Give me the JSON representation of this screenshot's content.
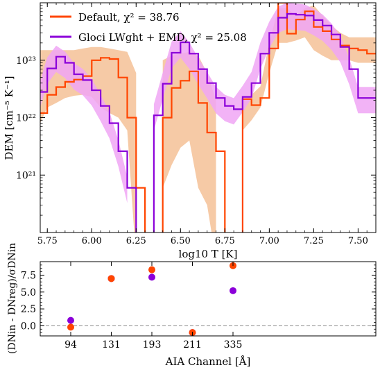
{
  "chart_data": [
    {
      "type": "line",
      "subtype": "step",
      "xlabel": "log10 T [K]",
      "ylabel": "DEM [cm⁻⁵ K⁻¹]",
      "xlim": [
        5.71,
        7.6
      ],
      "ylim": [
        1e+20,
        1e+24
      ],
      "y_scale": "log",
      "x_ticks": [
        5.75,
        6.0,
        6.25,
        6.5,
        6.75,
        7.0,
        7.25,
        7.5
      ],
      "x_tick_labels": [
        "5.75",
        "6.00",
        "6.25",
        "6.50",
        "6.75",
        "7.00",
        "7.25",
        "7.50"
      ],
      "y_ticks": [
        1e+21,
        1e+22,
        1e+23
      ],
      "y_tick_labels": [
        "10²¹",
        "10²²",
        "10²³"
      ],
      "legend": "top-left",
      "series": [
        {
          "name": "Default, χ² = 38.76",
          "color": "#ff4500",
          "band_color": "#f5c196",
          "x": [
            5.71,
            5.75,
            5.8,
            5.85,
            5.9,
            5.95,
            6.0,
            6.05,
            6.1,
            6.15,
            6.2,
            6.25,
            6.3,
            6.35,
            6.4,
            6.45,
            6.5,
            6.55,
            6.6,
            6.65,
            6.7,
            6.75,
            6.8,
            6.85,
            6.9,
            6.95,
            7.0,
            7.05,
            7.1,
            7.15,
            7.2,
            7.25,
            7.3,
            7.35,
            7.4,
            7.45,
            7.5,
            7.55,
            7.6
          ],
          "values": [
            1.2e+22,
            2.5e+22,
            3.4e+22,
            4.2e+22,
            4.6e+22,
            5.3e+22,
            1e+23,
            1.1e+23,
            1.05e+23,
            5e+22,
            1e+22,
            6e+20,
            null,
            null,
            1e+22,
            3.3e+22,
            4.4e+22,
            6.4e+22,
            1.8e+22,
            5.5e+21,
            2.6e+21,
            null,
            null,
            2.1e+22,
            1.65e+22,
            2.2e+22,
            1.6e+23,
            1e+24,
            2.9e+23,
            5.1e+23,
            7.1e+23,
            3.8e+23,
            3.2e+23,
            2.3e+23,
            1.8e+23,
            1.6e+23,
            1.5e+23,
            1.3e+23,
            1.2e+23
          ],
          "band_low": [
            8e+21,
            1.5e+22,
            1.8e+22,
            2.2e+22,
            2.4e+22,
            2.5e+22,
            2.3e+22,
            1.5e+22,
            1.2e+22,
            1e+22,
            6e+21,
            null,
            null,
            null,
            6e+20,
            1.5e+21,
            3e+21,
            4e+21,
            6e+20,
            3e+20,
            null,
            null,
            null,
            6e+21,
            9e+21,
            1.5e+22,
            6e+22,
            2e+23,
            2e+23,
            2.2e+23,
            2.5e+23,
            1.5e+23,
            1.2e+23,
            1e+23,
            1e+23,
            1e+23,
            9e+22,
            9e+22,
            9e+22
          ],
          "band_high": [
            1.5e+23,
            1.5e+23,
            1.5e+23,
            1.5e+23,
            1.5e+23,
            1.6e+23,
            1.7e+23,
            1.7e+23,
            1.6e+23,
            1.5e+23,
            1.4e+23,
            6e+22,
            null,
            null,
            1e+23,
            1.2e+23,
            1.3e+23,
            1.4e+23,
            1.2e+23,
            6e+22,
            2e+22,
            null,
            null,
            2e+22,
            2.5e+22,
            3.5e+22,
            2e+23,
            8e+23,
            8e+23,
            6e+23,
            8e+23,
            9e+23,
            6e+23,
            4e+23,
            3e+23,
            2.5e+23,
            2.5e+23,
            2.5e+23,
            2.5e+23
          ]
        },
        {
          "name": "Gloci LWght + EMD, χ² = 25.08",
          "color": "#8b00d9",
          "band_color": "#f0a6f5",
          "x": [
            5.71,
            5.75,
            5.8,
            5.85,
            5.9,
            5.95,
            6.0,
            6.05,
            6.1,
            6.15,
            6.2,
            6.25,
            6.3,
            6.35,
            6.4,
            6.45,
            6.5,
            6.55,
            6.6,
            6.65,
            6.7,
            6.75,
            6.8,
            6.85,
            6.9,
            6.95,
            7.0,
            7.05,
            7.1,
            7.15,
            7.2,
            7.25,
            7.3,
            7.35,
            7.4,
            7.45,
            7.5,
            7.55,
            7.6
          ],
          "values": [
            2.8e+22,
            7.2e+22,
            1.15e+23,
            9e+22,
            5.7e+22,
            4.5e+22,
            3e+22,
            1.6e+22,
            8e+21,
            2.6e+21,
            6e+20,
            null,
            null,
            1.1e+22,
            3.9e+22,
            1.35e+23,
            2.05e+23,
            1.3e+23,
            7e+22,
            4e+22,
            2.2e+22,
            1.6e+22,
            1.4e+22,
            2.3e+22,
            4e+22,
            1.3e+23,
            3e+23,
            5.5e+23,
            6.4e+23,
            6.2e+23,
            6e+23,
            5e+23,
            4e+23,
            2.8e+23,
            1.7e+23,
            7e+22,
            2.2e+22,
            2.2e+22,
            2.2e+22
          ],
          "band_low": [
            null,
            null,
            null,
            null,
            null,
            null,
            null,
            null,
            null,
            null,
            null,
            null,
            null,
            null,
            null,
            null,
            null,
            null,
            null,
            null,
            null,
            null,
            null,
            null,
            null,
            null,
            null,
            null,
            null,
            null,
            null,
            null,
            null,
            null,
            null,
            null,
            null,
            null,
            null
          ],
          "band_high": [
            null,
            null,
            null,
            null,
            null,
            null,
            null,
            null,
            null,
            null,
            null,
            null,
            null,
            null,
            null,
            null,
            null,
            null,
            null,
            null,
            null,
            null,
            null,
            null,
            null,
            null,
            null,
            null,
            null,
            null,
            null,
            null,
            null,
            null,
            null,
            null,
            null,
            null,
            null
          ]
        }
      ]
    },
    {
      "type": "scatter",
      "xlabel": "AIA Channel [Å]",
      "ylabel": "(DNin - DNreg)/σDNin",
      "categories": [
        "94",
        "131",
        "193",
        "211",
        "335"
      ],
      "ylim": [
        -1.5,
        9.5
      ],
      "y_ticks": [
        0.0,
        2.5,
        5.0,
        7.5
      ],
      "y_tick_labels": [
        "0.0",
        "2.5",
        "5.0",
        "7.5"
      ],
      "reference_line": 0,
      "series": [
        {
          "name": "Default",
          "color": "#ff4500",
          "values": [
            -0.2,
            7.0,
            8.3,
            -1.0,
            8.9
          ]
        },
        {
          "name": "Gloci LWght + EMD",
          "color": "#8b00d9",
          "values": [
            0.8,
            7.0,
            7.2,
            -1.0,
            5.2
          ]
        }
      ]
    }
  ]
}
